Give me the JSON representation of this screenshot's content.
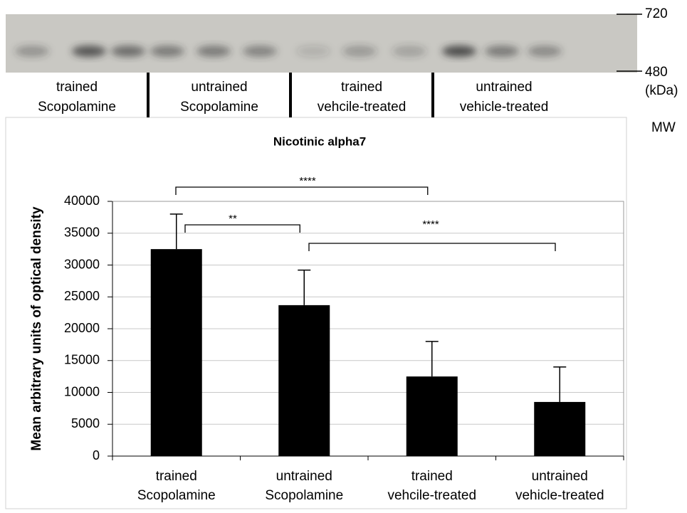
{
  "blot": {
    "lanes": [
      [
        "trained",
        "Scopolamine"
      ],
      [
        "untrained",
        "Scopolamine"
      ],
      [
        "trained",
        "vehcile-treated"
      ],
      [
        "untrained",
        "vehicle-treated"
      ]
    ],
    "markers": [
      720,
      480
    ],
    "unit": "(kDa)",
    "axis_label": "MW"
  },
  "chart_data": {
    "type": "bar",
    "title": "Nicotinic alpha7",
    "ylabel": "Mean arbitrary units of optical density",
    "categories": [
      [
        "trained",
        "Scopolamine"
      ],
      [
        "untrained",
        "Scopolamine"
      ],
      [
        "trained",
        "vehcile-treated"
      ],
      [
        "untrained",
        "vehicle-treated"
      ]
    ],
    "values": [
      32500,
      23700,
      12500,
      8500
    ],
    "errors": [
      5500,
      5500,
      5500,
      5500
    ],
    "color": "#000000",
    "ylim": [
      0,
      40000
    ],
    "yticks": [
      0,
      5000,
      10000,
      15000,
      20000,
      25000,
      30000,
      35000,
      40000
    ],
    "annotations": [
      "****",
      "**",
      "****"
    ]
  }
}
